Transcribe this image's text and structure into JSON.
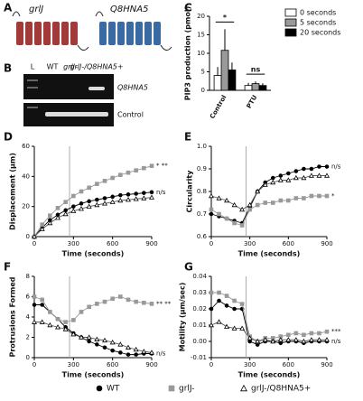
{
  "panels": {
    "A": {
      "panel": "A",
      "proteins": [
        "grlJ",
        "Q8HNA5"
      ]
    },
    "B": {
      "panel": "B",
      "lanes": [
        "L",
        "WT",
        "grlJ-",
        "grlJ-/Q8HNA5+"
      ],
      "bands": [
        "Q8HNA5",
        "Control"
      ]
    }
  },
  "chart_data": [
    {
      "type": "bar",
      "panel": "C",
      "ylabel": "PIP3 production (pmol)",
      "categories": [
        "Control",
        "PTU"
      ],
      "series": [
        {
          "name": "0 seconds",
          "color": "#ffffff",
          "values": [
            4,
            1.3
          ],
          "errors": [
            2.3,
            0.7
          ]
        },
        {
          "name": "5 seconds",
          "color": "#999999",
          "values": [
            10.8,
            1.8
          ],
          "errors": [
            5.7,
            0.6
          ]
        },
        {
          "name": "20 seconds",
          "color": "#000000",
          "values": [
            5.5,
            1.3
          ],
          "errors": [
            2.0,
            0.6
          ]
        }
      ],
      "annotations": [
        "*",
        "ns"
      ],
      "ylim": [
        0,
        20
      ],
      "yticks": [
        0,
        5,
        10,
        15,
        20
      ]
    },
    {
      "type": "line",
      "panel": "D",
      "ylabel": "Displacement (μm)",
      "xlabel": "Time (seconds)",
      "x": [
        0,
        60,
        120,
        180,
        240,
        300,
        360,
        420,
        480,
        540,
        600,
        660,
        720,
        780,
        840,
        900
      ],
      "series": [
        {
          "name": "WT",
          "color": "#000000",
          "marker": "circle",
          "values": [
            0,
            6,
            11,
            14.5,
            17.5,
            20,
            22,
            23.5,
            24.5,
            25.5,
            26.5,
            27.5,
            28,
            28.5,
            29,
            29.5
          ]
        },
        {
          "name": "grlJ-",
          "color": "#999999",
          "marker": "square",
          "values": [
            0,
            8,
            14,
            19,
            23,
            27,
            30,
            32.5,
            35,
            37,
            39,
            41,
            42.5,
            44,
            45.5,
            47
          ]
        },
        {
          "name": "grlJ-/Q8HNA5+",
          "color": "#ffffff",
          "marker": "triangle",
          "values": [
            0,
            5,
            9,
            12.5,
            15,
            17,
            18.5,
            20,
            21,
            22,
            23,
            24,
            24.5,
            25,
            25.5,
            26
          ]
        }
      ],
      "annotations": [
        "n/s",
        "* **"
      ],
      "marker_x": 270,
      "xlim": [
        0,
        900
      ],
      "xticks": [
        0,
        300,
        600,
        900
      ],
      "ylim": [
        0,
        60
      ],
      "yticks": [
        0,
        20,
        40,
        60
      ]
    },
    {
      "type": "line",
      "panel": "E",
      "ylabel": "Circularity",
      "xlabel": "Time (seconds)",
      "x": [
        0,
        60,
        120,
        180,
        240,
        300,
        360,
        420,
        480,
        540,
        600,
        660,
        720,
        780,
        840,
        900
      ],
      "series": [
        {
          "name": "WT",
          "color": "#000000",
          "marker": "circle",
          "values": [
            0.7,
            0.69,
            0.68,
            0.67,
            0.66,
            0.73,
            0.8,
            0.84,
            0.86,
            0.87,
            0.88,
            0.89,
            0.9,
            0.9,
            0.91,
            0.91
          ]
        },
        {
          "name": "grlJ-",
          "color": "#999999",
          "marker": "square",
          "values": [
            0.72,
            0.7,
            0.68,
            0.66,
            0.65,
            0.72,
            0.74,
            0.75,
            0.75,
            0.76,
            0.76,
            0.77,
            0.77,
            0.78,
            0.78,
            0.78
          ]
        },
        {
          "name": "grlJ-/Q8HNA5+",
          "color": "#ffffff",
          "marker": "triangle",
          "values": [
            0.78,
            0.77,
            0.76,
            0.74,
            0.72,
            0.74,
            0.8,
            0.83,
            0.84,
            0.85,
            0.85,
            0.86,
            0.86,
            0.87,
            0.87,
            0.87
          ]
        }
      ],
      "annotations": [
        "n/s",
        "*"
      ],
      "marker_x": 270,
      "xlim": [
        0,
        900
      ],
      "xticks": [
        0,
        300,
        600,
        900
      ],
      "ylim": [
        0.6,
        1
      ],
      "yticks": [
        0.6,
        0.7,
        0.8,
        0.9,
        {
          "value": 1,
          "label": "1.0"
        }
      ]
    },
    {
      "type": "line",
      "panel": "F",
      "ylabel": "Protrusions Formed",
      "xlabel": "Time (seconds)",
      "x": [
        0,
        60,
        120,
        180,
        240,
        300,
        360,
        420,
        480,
        540,
        600,
        660,
        720,
        780,
        840,
        900
      ],
      "series": [
        {
          "name": "WT",
          "color": "#000000",
          "marker": "circle",
          "values": [
            5.2,
            5.2,
            4.5,
            3.8,
            3,
            2.4,
            2,
            1.6,
            1.3,
            1,
            0.7,
            0.5,
            0.3,
            0.3,
            0.4,
            0.4
          ]
        },
        {
          "name": "grlJ-",
          "color": "#999999",
          "marker": "square",
          "values": [
            6,
            5.7,
            4.5,
            3.8,
            3.5,
            3.7,
            4.5,
            5,
            5.3,
            5.5,
            5.8,
            6,
            5.7,
            5.5,
            5.4,
            5.3
          ]
        },
        {
          "name": "grlJ-/Q8HNA5+",
          "color": "#ffffff",
          "marker": "triangle",
          "values": [
            3.5,
            3.5,
            3.2,
            3,
            2.8,
            2.3,
            2,
            2,
            1.8,
            1.7,
            1.5,
            1.3,
            1,
            0.8,
            0.6,
            0.5
          ]
        }
      ],
      "annotations": [
        "n/s",
        "** **"
      ],
      "marker_x": 270,
      "xlim": [
        0,
        900
      ],
      "xticks": [
        0,
        300,
        600,
        900
      ],
      "ylim": [
        0,
        8
      ],
      "yticks": [
        0,
        2,
        4,
        6,
        8
      ]
    },
    {
      "type": "line",
      "panel": "G",
      "ylabel": "Motility (μm/sec)",
      "xlabel": "Time (seconds)",
      "x": [
        0,
        60,
        120,
        180,
        240,
        300,
        360,
        420,
        480,
        540,
        600,
        660,
        720,
        780,
        840,
        900
      ],
      "series": [
        {
          "name": "WT",
          "color": "#000000",
          "marker": "circle",
          "values": [
            0.02,
            0.025,
            0.022,
            0.02,
            0.02,
            0,
            -0.002,
            0,
            0,
            -0.001,
            0,
            0,
            -0.001,
            0,
            0,
            0
          ]
        },
        {
          "name": "grlJ-",
          "color": "#999999",
          "marker": "square",
          "values": [
            0.03,
            0.03,
            0.028,
            0.025,
            0.023,
            0.003,
            0,
            0.002,
            0.002,
            0.003,
            0.004,
            0.005,
            0.004,
            0.005,
            0.005,
            0.006
          ]
        },
        {
          "name": "grlJ-/Q8HNA5+",
          "color": "#ffffff",
          "marker": "triangle",
          "values": [
            0.01,
            0.012,
            0.009,
            0.008,
            0.008,
            0.002,
            0,
            0.001,
            0,
            0.001,
            0.001,
            0.001,
            0,
            0.001,
            0.001,
            0.001
          ]
        }
      ],
      "annotations": [
        "n/s",
        "***"
      ],
      "marker_x": 270,
      "xlim": [
        0,
        900
      ],
      "xticks": [
        0,
        300,
        600,
        900
      ],
      "ylim": [
        -0.01,
        0.04
      ],
      "yticks": [
        -0.01,
        {
          "value": 0,
          "label": "0.00"
        },
        0.01,
        0.02,
        0.03,
        0.04
      ]
    }
  ]
}
